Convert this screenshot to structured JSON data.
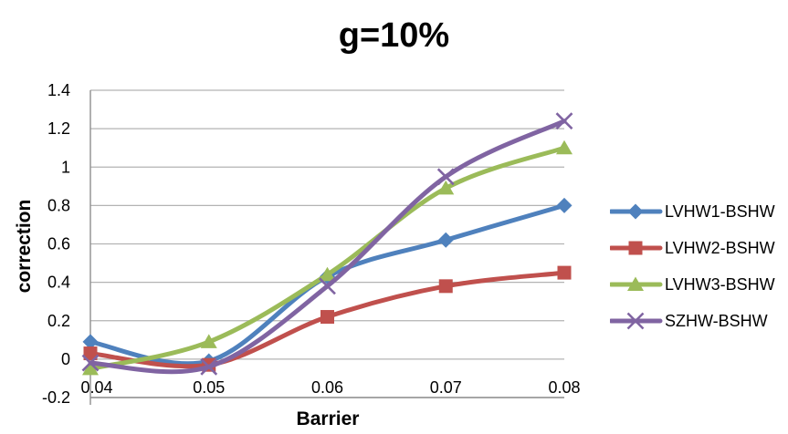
{
  "chart_data": {
    "type": "line",
    "title": "g=10%",
    "xlabel": "Barrier",
    "ylabel": "correction",
    "categories": [
      "0.04",
      "0.05",
      "0.06",
      "0.07",
      "0.08"
    ],
    "x_values": [
      0.04,
      0.05,
      0.06,
      0.07,
      0.08
    ],
    "y_ticks": [
      "-0.2",
      "0",
      "0.2",
      "0.4",
      "0.6",
      "0.8",
      "1",
      "1.2",
      "1.4"
    ],
    "y_tick_values": [
      -0.2,
      0,
      0.2,
      0.4,
      0.6,
      0.8,
      1,
      1.2,
      1.4
    ],
    "ylim": [
      -0.2,
      1.4
    ],
    "grid": true,
    "smooth_lines": true,
    "legend_position": "right",
    "series": [
      {
        "name": "LVHW1-BSHW",
        "marker": "diamond",
        "color": "#4F81BD",
        "values": [
          0.09,
          -0.01,
          0.43,
          0.62,
          0.8
        ]
      },
      {
        "name": "LVHW2-BSHW",
        "marker": "square",
        "color": "#C0504D",
        "values": [
          0.03,
          -0.03,
          0.22,
          0.38,
          0.45
        ]
      },
      {
        "name": "LVHW3-BSHW",
        "marker": "triangle",
        "color": "#9BBB59",
        "values": [
          -0.05,
          0.09,
          0.44,
          0.89,
          1.1
        ]
      },
      {
        "name": "SZHW-BSHW",
        "marker": "x",
        "color": "#8064A2",
        "values": [
          -0.02,
          -0.04,
          0.38,
          0.95,
          1.24
        ]
      }
    ],
    "colors": {
      "grid": "#b3b3b3",
      "axis": "#8e8e8e",
      "text": "#000000",
      "background": "#ffffff"
    }
  }
}
